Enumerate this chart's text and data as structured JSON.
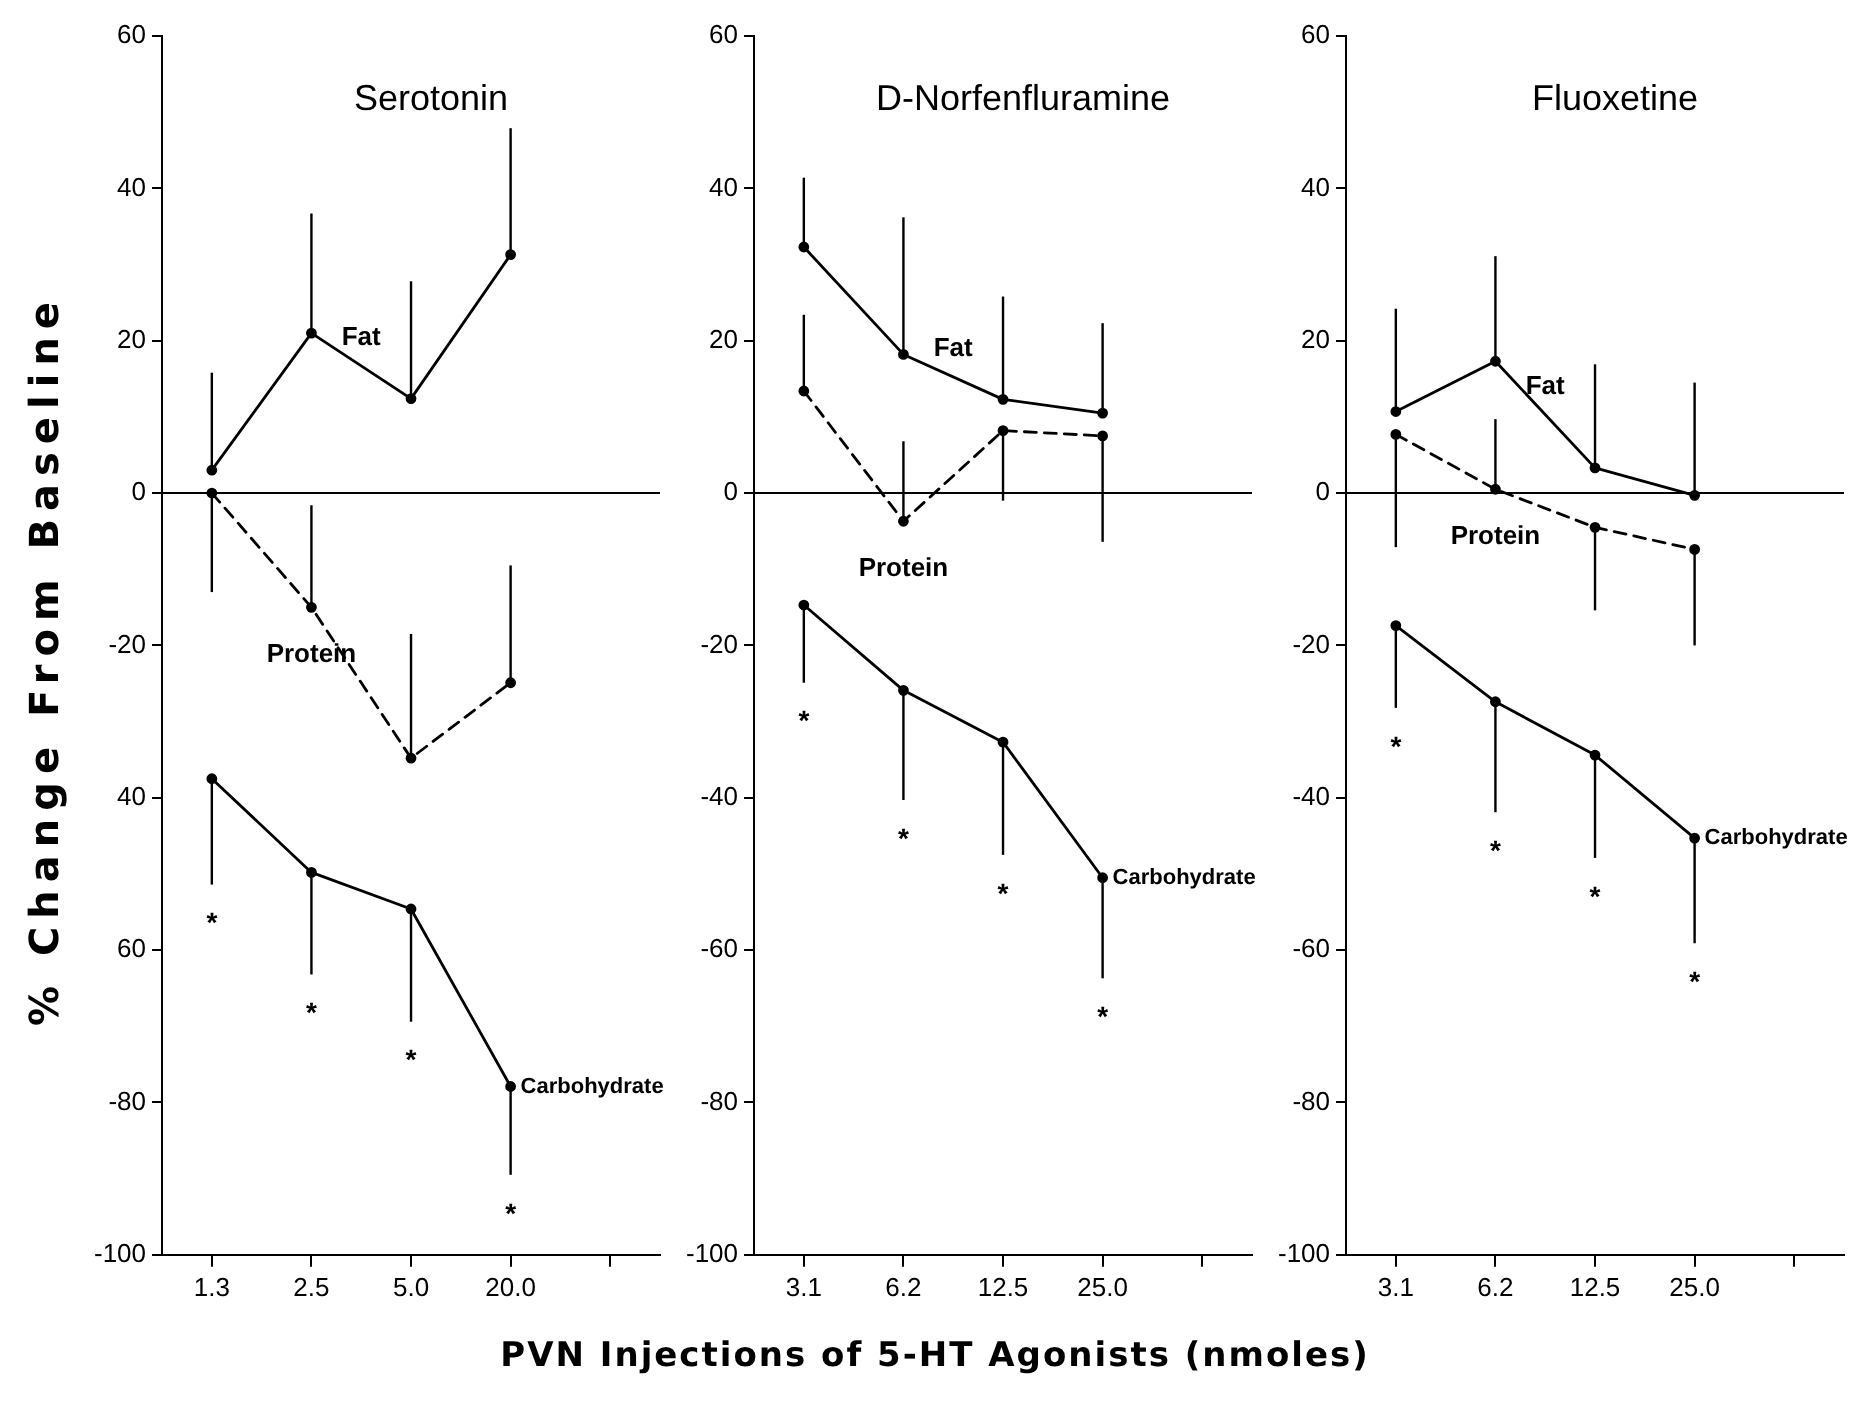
{
  "chart_data": [
    {
      "type": "line",
      "title": "Serotonin",
      "ylabel": "% Change From Baseline",
      "categories": [
        "1.3",
        "2.5",
        "5.0",
        "20.0",
        null
      ],
      "marker": "circle",
      "ylim": [
        -100,
        60
      ],
      "yticks": [
        60,
        40,
        20,
        0,
        -20,
        {
          "value": -40,
          "label": "40"
        },
        {
          "value": -60,
          "label": "60"
        },
        -80,
        -100
      ],
      "ref_lines": [
        {
          "axis": "y",
          "value": 0
        }
      ],
      "series": [
        {
          "name": "Fat",
          "color": "#000000",
          "line_style": "solid",
          "values": [
            3,
            21,
            12.4,
            31.3,
            null
          ],
          "errors": [
            [
              3,
              15.8
            ],
            [
              21,
              36.7
            ],
            [
              12.4,
              27.8
            ],
            [
              31.3,
              47.9
            ],
            null
          ]
        },
        {
          "name": "Protein",
          "color": "#000000",
          "line_style": "dashed",
          "values": [
            0,
            -15,
            -34.8,
            -24.9,
            null
          ],
          "errors": [
            [
              -13,
              0
            ],
            [
              -15,
              -1.6
            ],
            [
              -34.8,
              -18.5
            ],
            [
              -24.9,
              -9.5
            ],
            null
          ]
        },
        {
          "name": "Carbohydrate",
          "color": "#000000",
          "line_style": "solid",
          "values": [
            -37.5,
            -49.8,
            -54.6,
            -77.9,
            null
          ],
          "errors": [
            [
              -51.4,
              -37.5
            ],
            [
              -63.2,
              -49.8
            ],
            [
              -69.4,
              -54.6
            ],
            [
              -89.5,
              -77.9
            ],
            null
          ]
        }
      ],
      "annotations": [
        "*",
        "*",
        "*",
        "*"
      ]
    },
    {
      "type": "line",
      "title": "D-Norfenfluramine",
      "xlabel": "PVN Injections of 5-HT Agonists (nmoles)",
      "categories": [
        "3.1",
        "6.2",
        "12.5",
        "25.0",
        null
      ],
      "marker": "circle",
      "ylim": [
        -100,
        60
      ],
      "yticks": [
        60,
        40,
        20,
        0,
        -20,
        -40,
        -60,
        -80,
        -100
      ],
      "ref_lines": [
        {
          "axis": "y",
          "value": 0
        }
      ],
      "series": [
        {
          "name": "Fat",
          "color": "#000000",
          "line_style": "solid",
          "values": [
            32.3,
            18.2,
            12.3,
            10.5,
            null
          ],
          "errors": [
            [
              32.3,
              41.4
            ],
            [
              18.2,
              36.2
            ],
            [
              12.3,
              25.8
            ],
            [
              10.5,
              22.3
            ],
            null
          ]
        },
        {
          "name": "Protein",
          "color": "#000000",
          "line_style": "dashed",
          "values": [
            13.4,
            -3.7,
            8.2,
            7.5,
            null
          ],
          "errors": [
            [
              13.4,
              23.4
            ],
            [
              -3.7,
              6.8
            ],
            [
              -1,
              8.2
            ],
            [
              -6.4,
              7.5
            ],
            null
          ]
        },
        {
          "name": "Carbohydrate",
          "color": "#000000",
          "line_style": "solid",
          "values": [
            -14.7,
            -25.9,
            -32.7,
            -50.5,
            null
          ],
          "errors": [
            [
              -24.9,
              -14.7
            ],
            [
              -40.3,
              -25.9
            ],
            [
              -47.5,
              -32.7
            ],
            [
              -63.7,
              -50.5
            ],
            null
          ]
        }
      ],
      "annotations": [
        "*",
        "*",
        "*",
        "*"
      ]
    },
    {
      "type": "line",
      "title": "Fluoxetine",
      "categories": [
        "3.1",
        "6.2",
        "12.5",
        "25.0",
        null
      ],
      "marker": "circle",
      "ylim": [
        -100,
        60
      ],
      "yticks": [
        60,
        40,
        20,
        0,
        -20,
        -40,
        -60,
        -80,
        -100
      ],
      "ref_lines": [
        {
          "axis": "y",
          "value": 0
        }
      ],
      "series": [
        {
          "name": "Fat",
          "color": "#000000",
          "line_style": "solid",
          "values": [
            10.7,
            17.3,
            3.3,
            -0.3,
            null
          ],
          "errors": [
            [
              10.7,
              24.2
            ],
            [
              17.3,
              31.1
            ],
            [
              3.3,
              16.9
            ],
            [
              -0.3,
              14.5
            ],
            null
          ]
        },
        {
          "name": "Protein",
          "color": "#000000",
          "line_style": "dashed",
          "values": [
            7.7,
            0.5,
            -4.5,
            -7.4,
            null
          ],
          "errors": [
            [
              -7.1,
              7.7
            ],
            [
              0.5,
              9.7
            ],
            [
              -15.4,
              -4.5
            ],
            [
              -20,
              -7.4
            ],
            null
          ]
        },
        {
          "name": "Carbohydrate",
          "color": "#000000",
          "line_style": "solid",
          "values": [
            -17.4,
            -27.4,
            -34.4,
            -45.3,
            null
          ],
          "errors": [
            [
              -28.2,
              -17.4
            ],
            [
              -41.9,
              -27.4
            ],
            [
              -47.9,
              -34.4
            ],
            [
              -59.1,
              -45.3
            ],
            null
          ]
        }
      ],
      "annotations": [
        "*",
        "*",
        "*",
        "*"
      ]
    }
  ]
}
